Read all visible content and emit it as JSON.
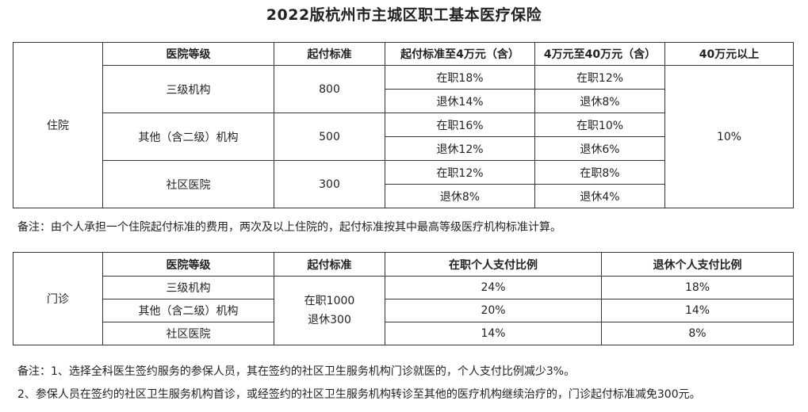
{
  "title": "2022版杭州市主城区职工基本医疗保险",
  "inpatient": {
    "section_label": "住院",
    "headers": [
      "医院等级",
      "起付标准",
      "起付标准至4万元（含）",
      "4万元至40万元（含）",
      "40万元以上"
    ],
    "rows": [
      {
        "level": "三级机构",
        "threshold": "800",
        "tier1": [
          "在职18%",
          "退休14%"
        ],
        "tier2": [
          "在职12%",
          "退休8%"
        ]
      },
      {
        "level": "其他（含二级）机构",
        "threshold": "500",
        "tier1": [
          "在职16%",
          "退休12%"
        ],
        "tier2": [
          "在职10%",
          "退休6%"
        ]
      },
      {
        "level": "社区医院",
        "threshold": "300",
        "tier1": [
          "在职12%",
          "退休8%"
        ],
        "tier2": [
          "在职8%",
          "退休4%"
        ]
      }
    ],
    "above_40w": "10%",
    "note": "备注：由个人承担一个住院起付标准的费用，两次及以上住院的，起付标准按其中最高等级医疗机构标准计算。"
  },
  "outpatient": {
    "section_label": "门诊",
    "headers": [
      "医院等级",
      "起付标准",
      "在职个人支付比例",
      "退休个人支付比例"
    ],
    "threshold_lines": [
      "在职1000",
      "退休300"
    ],
    "rows": [
      {
        "level": "三级机构",
        "employed": "24%",
        "retired": "18%"
      },
      {
        "level": "其他（含二级）机构",
        "employed": "20%",
        "retired": "14%"
      },
      {
        "level": "社区医院",
        "employed": "14%",
        "retired": "8%"
      }
    ],
    "notes": [
      "备注：1、选择全科医生签约服务的参保人员，其在签约的社区卫生服务机构门诊就医的，个人支付比例减少3%。",
      "2、参保人员在签约的社区卫生服务机构首诊，或经签约的社区卫生服务机构转诊至其他的医疗机构继续治疗的，门诊起付标准减免300元。"
    ]
  }
}
